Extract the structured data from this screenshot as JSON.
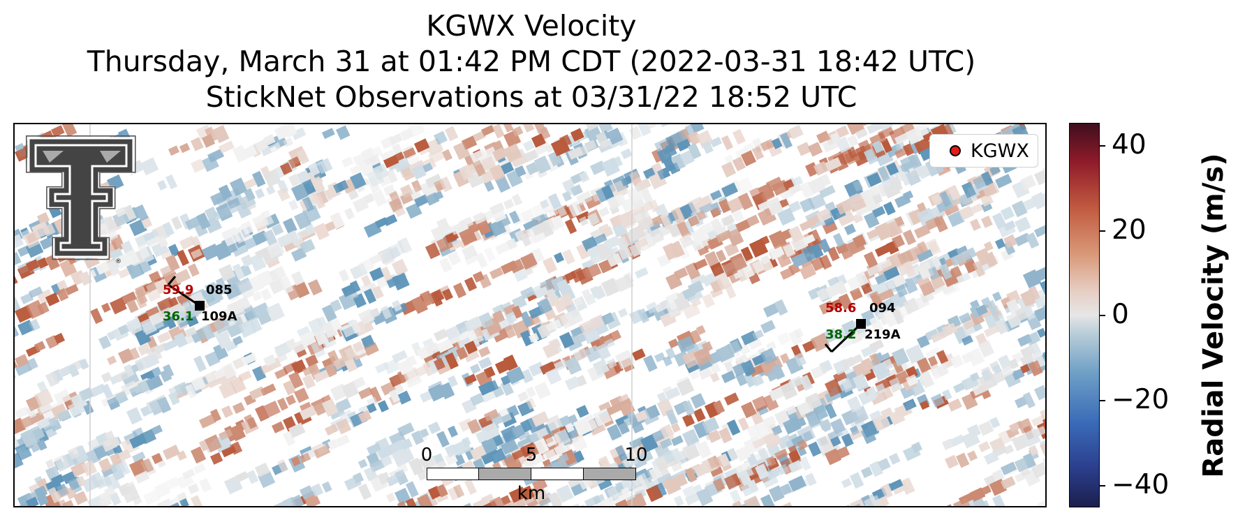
{
  "title": {
    "line1": "KGWX Velocity",
    "line2": "Thursday, March 31 at 01:42 PM CDT (2022-03-31 18:42 UTC)",
    "line3": "StickNet Observations at 03/31/22 18:52 UTC"
  },
  "legend": {
    "label": "KGWX",
    "marker_color": "#e41a1c"
  },
  "logo": {
    "icon": "texas-tech-double-t-logo",
    "registered_mark": "®"
  },
  "scalebar": {
    "ticks": [
      "0",
      "5",
      "10"
    ],
    "unit": "km"
  },
  "stations": [
    {
      "temp": "59.9",
      "dewpoint": "36.1",
      "direction": "085",
      "id": "109A"
    },
    {
      "temp": "58.6",
      "dewpoint": "38.2",
      "direction": "094",
      "id": "219A"
    }
  ],
  "colorbar": {
    "title": "Radial Velocity (m/s)",
    "ticks": [
      "40",
      "20",
      "0",
      "−20",
      "−40"
    ],
    "range": [
      -45,
      45
    ],
    "colors": [
      "#1b1f4d",
      "#3a6bb8",
      "#e6e6e6",
      "#c15a40",
      "#3f0f1e"
    ]
  }
}
